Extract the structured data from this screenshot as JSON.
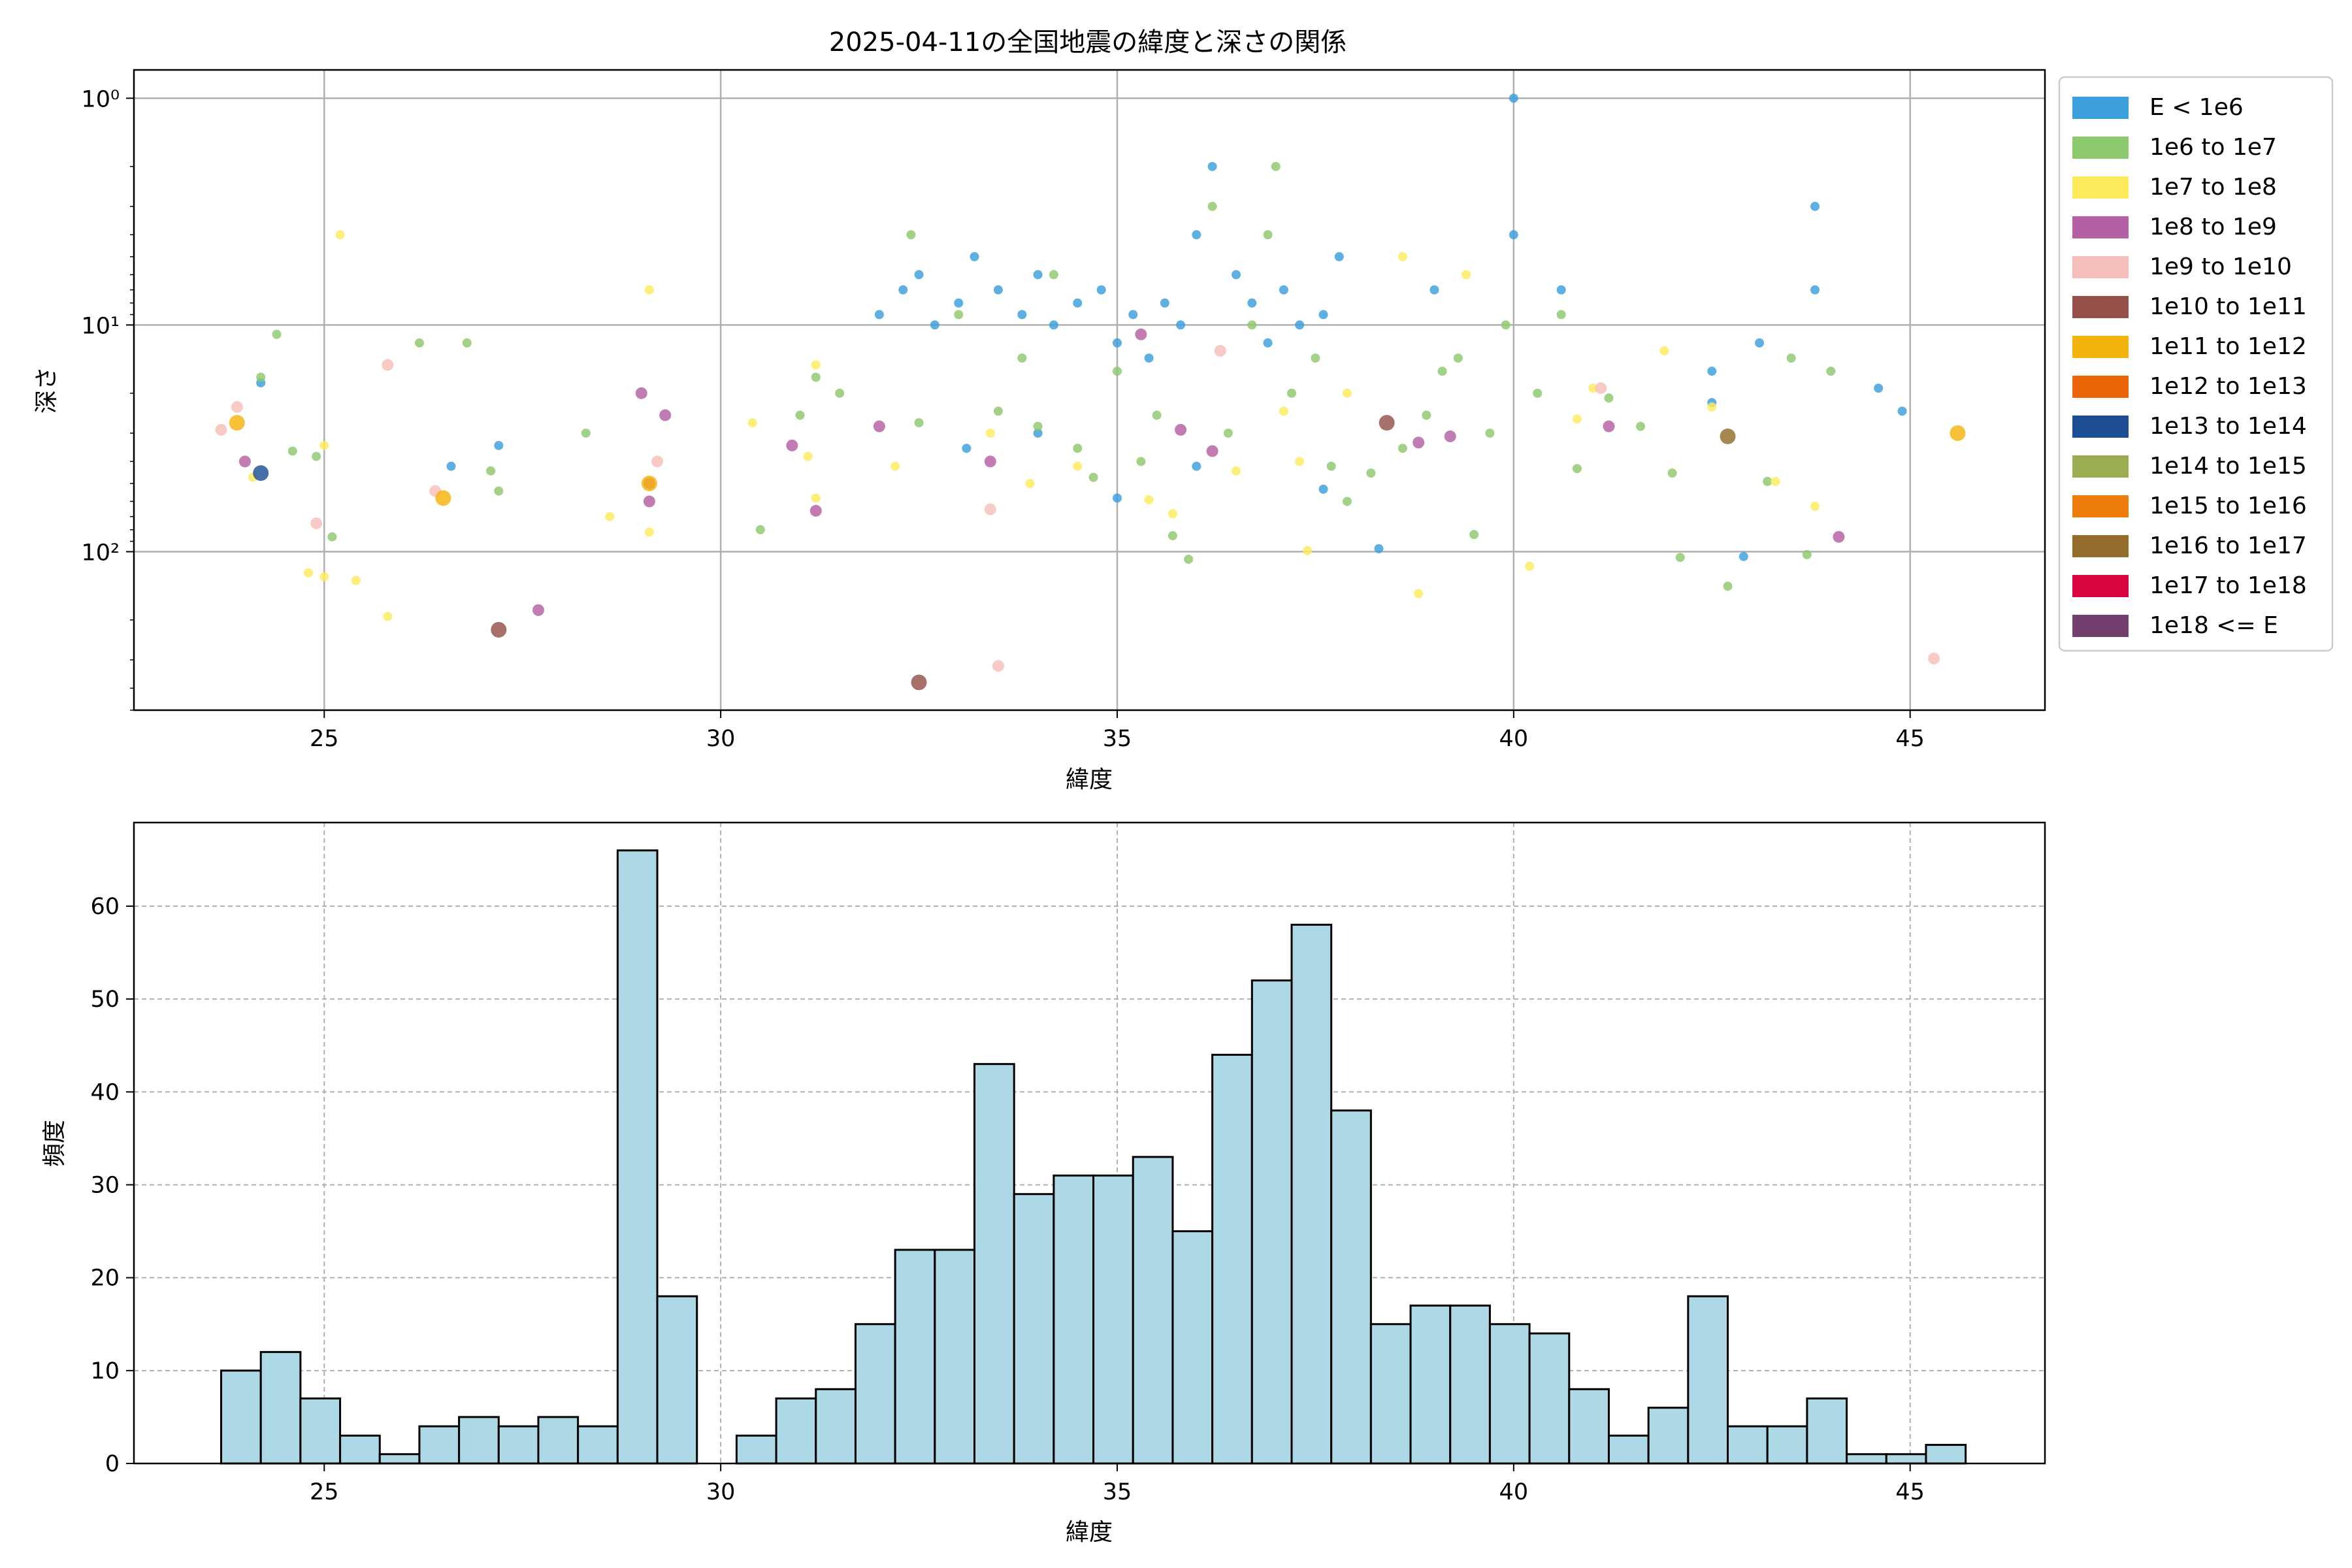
{
  "chart_data": [
    {
      "type": "scatter",
      "title": "2025-04-11の全国地震の緯度と深さの関係",
      "xlabel": "緯度",
      "ylabel": "深さ",
      "xlim": [
        22.6,
        46.7
      ],
      "ylim": [
        500,
        0.75
      ],
      "yscale": "log",
      "yaxis_inverted": true,
      "grid": true,
      "x_ticks": [
        25,
        30,
        35,
        40,
        45
      ],
      "y_ticks": [
        {
          "value": 1,
          "label": "10⁰"
        },
        {
          "value": 10,
          "label": "10¹"
        },
        {
          "value": 100,
          "label": "10²"
        }
      ],
      "legend_position": "outside-right",
      "legend": [
        {
          "label": "E < 1e6",
          "color": "#3a9fdc"
        },
        {
          "label": "1e6 to 1e7",
          "color": "#8cc86c"
        },
        {
          "label": "1e7 to 1e8",
          "color": "#fcec5c"
        },
        {
          "label": "1e8 to 1e9",
          "color": "#b55fa4"
        },
        {
          "label": "1e9 to 1e10",
          "color": "#f6bfbb"
        },
        {
          "label": "1e10 to 1e11",
          "color": "#955049"
        },
        {
          "label": "1e11 to 1e12",
          "color": "#f5b30e"
        },
        {
          "label": "1e12 to 1e13",
          "color": "#ec6509"
        },
        {
          "label": "1e13 to 1e14",
          "color": "#1d4e94"
        },
        {
          "label": "1e14 to 1e15",
          "color": "#9aae51"
        },
        {
          "label": "1e15 to 1e16",
          "color": "#ee7d0b"
        },
        {
          "label": "1e16 to 1e17",
          "color": "#946c2b"
        },
        {
          "label": "1e17 to 1e18",
          "color": "#d8033f"
        },
        {
          "label": "1e18 <= E",
          "color": "#723f6e"
        }
      ],
      "points": [
        {
          "x": 32.0,
          "y": 9,
          "c": 0
        },
        {
          "x": 32.3,
          "y": 7,
          "c": 0
        },
        {
          "x": 32.5,
          "y": 6,
          "c": 0
        },
        {
          "x": 32.7,
          "y": 10,
          "c": 0
        },
        {
          "x": 33.0,
          "y": 8,
          "c": 0
        },
        {
          "x": 33.2,
          "y": 5,
          "c": 0
        },
        {
          "x": 33.5,
          "y": 7,
          "c": 0
        },
        {
          "x": 33.8,
          "y": 9,
          "c": 0
        },
        {
          "x": 34.0,
          "y": 6,
          "c": 0
        },
        {
          "x": 34.2,
          "y": 10,
          "c": 0
        },
        {
          "x": 34.5,
          "y": 8,
          "c": 0
        },
        {
          "x": 34.8,
          "y": 7,
          "c": 0
        },
        {
          "x": 35.0,
          "y": 12,
          "c": 0
        },
        {
          "x": 35.2,
          "y": 9,
          "c": 0
        },
        {
          "x": 35.4,
          "y": 14,
          "c": 0
        },
        {
          "x": 35.6,
          "y": 8,
          "c": 0
        },
        {
          "x": 35.8,
          "y": 10,
          "c": 0
        },
        {
          "x": 36.0,
          "y": 4,
          "c": 0
        },
        {
          "x": 36.2,
          "y": 2,
          "c": 0
        },
        {
          "x": 36.5,
          "y": 6,
          "c": 0
        },
        {
          "x": 36.7,
          "y": 8,
          "c": 0
        },
        {
          "x": 36.9,
          "y": 12,
          "c": 0
        },
        {
          "x": 37.1,
          "y": 7,
          "c": 0
        },
        {
          "x": 37.3,
          "y": 10,
          "c": 0
        },
        {
          "x": 37.6,
          "y": 9,
          "c": 0
        },
        {
          "x": 37.8,
          "y": 5,
          "c": 0
        },
        {
          "x": 38.3,
          "y": 97,
          "c": 0
        },
        {
          "x": 39.0,
          "y": 7,
          "c": 0
        },
        {
          "x": 40.0,
          "y": 1,
          "c": 0
        },
        {
          "x": 40.0,
          "y": 4,
          "c": 0
        },
        {
          "x": 40.6,
          "y": 7,
          "c": 0
        },
        {
          "x": 42.5,
          "y": 16,
          "c": 0
        },
        {
          "x": 43.1,
          "y": 12,
          "c": 0
        },
        {
          "x": 43.8,
          "y": 3,
          "c": 0
        },
        {
          "x": 43.8,
          "y": 7,
          "c": 0
        },
        {
          "x": 44.6,
          "y": 19,
          "c": 0
        },
        {
          "x": 44.9,
          "y": 24,
          "c": 0
        },
        {
          "x": 24.2,
          "y": 18,
          "c": 0
        },
        {
          "x": 26.6,
          "y": 42,
          "c": 0
        },
        {
          "x": 27.2,
          "y": 34,
          "c": 0
        },
        {
          "x": 33.1,
          "y": 35,
          "c": 0
        },
        {
          "x": 34.0,
          "y": 30,
          "c": 0
        },
        {
          "x": 35.0,
          "y": 58,
          "c": 0
        },
        {
          "x": 36.0,
          "y": 42,
          "c": 0
        },
        {
          "x": 37.6,
          "y": 53,
          "c": 0
        },
        {
          "x": 42.5,
          "y": 22,
          "c": 0
        },
        {
          "x": 42.9,
          "y": 105,
          "c": 0
        },
        {
          "x": 24.2,
          "y": 17,
          "c": 1
        },
        {
          "x": 24.4,
          "y": 11,
          "c": 1
        },
        {
          "x": 24.6,
          "y": 36,
          "c": 1
        },
        {
          "x": 24.9,
          "y": 38,
          "c": 1
        },
        {
          "x": 25.1,
          "y": 86,
          "c": 1
        },
        {
          "x": 26.2,
          "y": 12,
          "c": 1
        },
        {
          "x": 26.8,
          "y": 12,
          "c": 1
        },
        {
          "x": 27.1,
          "y": 44,
          "c": 1
        },
        {
          "x": 27.2,
          "y": 54,
          "c": 1
        },
        {
          "x": 28.3,
          "y": 30,
          "c": 1
        },
        {
          "x": 30.5,
          "y": 80,
          "c": 1
        },
        {
          "x": 31.0,
          "y": 25,
          "c": 1
        },
        {
          "x": 31.2,
          "y": 17,
          "c": 1
        },
        {
          "x": 31.5,
          "y": 20,
          "c": 1
        },
        {
          "x": 32.4,
          "y": 4,
          "c": 1
        },
        {
          "x": 32.5,
          "y": 27,
          "c": 1
        },
        {
          "x": 33.0,
          "y": 9,
          "c": 1
        },
        {
          "x": 33.5,
          "y": 24,
          "c": 1
        },
        {
          "x": 33.8,
          "y": 14,
          "c": 1
        },
        {
          "x": 34.0,
          "y": 28,
          "c": 1
        },
        {
          "x": 34.2,
          "y": 6,
          "c": 1
        },
        {
          "x": 34.5,
          "y": 35,
          "c": 1
        },
        {
          "x": 34.7,
          "y": 47,
          "c": 1
        },
        {
          "x": 35.0,
          "y": 16,
          "c": 1
        },
        {
          "x": 35.3,
          "y": 40,
          "c": 1
        },
        {
          "x": 35.5,
          "y": 25,
          "c": 1
        },
        {
          "x": 35.7,
          "y": 85,
          "c": 1
        },
        {
          "x": 35.9,
          "y": 108,
          "c": 1
        },
        {
          "x": 36.2,
          "y": 3,
          "c": 1
        },
        {
          "x": 36.4,
          "y": 30,
          "c": 1
        },
        {
          "x": 36.7,
          "y": 10,
          "c": 1
        },
        {
          "x": 36.9,
          "y": 4,
          "c": 1
        },
        {
          "x": 37.0,
          "y": 2,
          "c": 1
        },
        {
          "x": 37.2,
          "y": 20,
          "c": 1
        },
        {
          "x": 37.5,
          "y": 14,
          "c": 1
        },
        {
          "x": 37.7,
          "y": 42,
          "c": 1
        },
        {
          "x": 37.9,
          "y": 60,
          "c": 1
        },
        {
          "x": 38.2,
          "y": 45,
          "c": 1
        },
        {
          "x": 38.6,
          "y": 35,
          "c": 1
        },
        {
          "x": 38.9,
          "y": 25,
          "c": 1
        },
        {
          "x": 39.1,
          "y": 16,
          "c": 1
        },
        {
          "x": 39.3,
          "y": 14,
          "c": 1
        },
        {
          "x": 39.5,
          "y": 84,
          "c": 1
        },
        {
          "x": 39.7,
          "y": 30,
          "c": 1
        },
        {
          "x": 39.9,
          "y": 10,
          "c": 1
        },
        {
          "x": 40.3,
          "y": 20,
          "c": 1
        },
        {
          "x": 40.6,
          "y": 9,
          "c": 1
        },
        {
          "x": 40.8,
          "y": 43,
          "c": 1
        },
        {
          "x": 41.2,
          "y": 21,
          "c": 1
        },
        {
          "x": 41.6,
          "y": 28,
          "c": 1
        },
        {
          "x": 42.0,
          "y": 45,
          "c": 1
        },
        {
          "x": 42.1,
          "y": 106,
          "c": 1
        },
        {
          "x": 42.7,
          "y": 142,
          "c": 1
        },
        {
          "x": 43.2,
          "y": 49,
          "c": 1
        },
        {
          "x": 43.5,
          "y": 14,
          "c": 1
        },
        {
          "x": 43.7,
          "y": 103,
          "c": 1
        },
        {
          "x": 44.0,
          "y": 16,
          "c": 1
        },
        {
          "x": 24.1,
          "y": 47,
          "c": 2
        },
        {
          "x": 24.8,
          "y": 124,
          "c": 2
        },
        {
          "x": 25.0,
          "y": 34,
          "c": 2
        },
        {
          "x": 25.0,
          "y": 129,
          "c": 2
        },
        {
          "x": 25.2,
          "y": 4,
          "c": 2
        },
        {
          "x": 25.4,
          "y": 134,
          "c": 2
        },
        {
          "x": 25.8,
          "y": 193,
          "c": 2
        },
        {
          "x": 28.6,
          "y": 70,
          "c": 2
        },
        {
          "x": 29.1,
          "y": 7,
          "c": 2
        },
        {
          "x": 29.1,
          "y": 82,
          "c": 2
        },
        {
          "x": 30.4,
          "y": 27,
          "c": 2
        },
        {
          "x": 31.1,
          "y": 38,
          "c": 2
        },
        {
          "x": 31.2,
          "y": 58,
          "c": 2
        },
        {
          "x": 31.2,
          "y": 15,
          "c": 2
        },
        {
          "x": 32.2,
          "y": 42,
          "c": 2
        },
        {
          "x": 33.4,
          "y": 30,
          "c": 2
        },
        {
          "x": 33.9,
          "y": 50,
          "c": 2
        },
        {
          "x": 34.5,
          "y": 42,
          "c": 2
        },
        {
          "x": 35.4,
          "y": 59,
          "c": 2
        },
        {
          "x": 35.7,
          "y": 68,
          "c": 2
        },
        {
          "x": 36.5,
          "y": 44,
          "c": 2
        },
        {
          "x": 37.1,
          "y": 24,
          "c": 2
        },
        {
          "x": 37.3,
          "y": 40,
          "c": 2
        },
        {
          "x": 37.4,
          "y": 99,
          "c": 2
        },
        {
          "x": 37.9,
          "y": 20,
          "c": 2
        },
        {
          "x": 38.6,
          "y": 5,
          "c": 2
        },
        {
          "x": 38.8,
          "y": 153,
          "c": 2
        },
        {
          "x": 39.4,
          "y": 6,
          "c": 2
        },
        {
          "x": 40.2,
          "y": 116,
          "c": 2
        },
        {
          "x": 40.8,
          "y": 26,
          "c": 2
        },
        {
          "x": 41.0,
          "y": 19,
          "c": 2
        },
        {
          "x": 41.9,
          "y": 13,
          "c": 2
        },
        {
          "x": 42.5,
          "y": 23,
          "c": 2
        },
        {
          "x": 43.3,
          "y": 49,
          "c": 2
        },
        {
          "x": 43.8,
          "y": 63,
          "c": 2
        },
        {
          "x": 24.0,
          "y": 40,
          "c": 3
        },
        {
          "x": 27.7,
          "y": 181,
          "c": 3
        },
        {
          "x": 29.0,
          "y": 20,
          "c": 3
        },
        {
          "x": 29.1,
          "y": 50,
          "c": 3
        },
        {
          "x": 29.1,
          "y": 60,
          "c": 3
        },
        {
          "x": 29.3,
          "y": 25,
          "c": 3
        },
        {
          "x": 30.9,
          "y": 34,
          "c": 3
        },
        {
          "x": 31.2,
          "y": 66,
          "c": 3
        },
        {
          "x": 32.0,
          "y": 28,
          "c": 3
        },
        {
          "x": 33.4,
          "y": 40,
          "c": 3
        },
        {
          "x": 35.3,
          "y": 11,
          "c": 3
        },
        {
          "x": 35.8,
          "y": 29,
          "c": 3
        },
        {
          "x": 36.2,
          "y": 36,
          "c": 3
        },
        {
          "x": 38.8,
          "y": 33,
          "c": 3
        },
        {
          "x": 39.2,
          "y": 31,
          "c": 3
        },
        {
          "x": 41.2,
          "y": 28,
          "c": 3
        },
        {
          "x": 44.1,
          "y": 86,
          "c": 3
        },
        {
          "x": 23.7,
          "y": 29,
          "c": 4
        },
        {
          "x": 23.9,
          "y": 23,
          "c": 4
        },
        {
          "x": 24.9,
          "y": 75,
          "c": 4
        },
        {
          "x": 25.8,
          "y": 15,
          "c": 4
        },
        {
          "x": 26.4,
          "y": 54,
          "c": 4
        },
        {
          "x": 29.2,
          "y": 40,
          "c": 4
        },
        {
          "x": 33.4,
          "y": 65,
          "c": 4
        },
        {
          "x": 33.5,
          "y": 319,
          "c": 4
        },
        {
          "x": 36.3,
          "y": 13,
          "c": 4
        },
        {
          "x": 41.1,
          "y": 19,
          "c": 4
        },
        {
          "x": 45.3,
          "y": 296,
          "c": 4
        },
        {
          "x": 27.2,
          "y": 221,
          "c": 5
        },
        {
          "x": 32.5,
          "y": 377,
          "c": 5
        },
        {
          "x": 38.4,
          "y": 27,
          "c": 5
        },
        {
          "x": 23.9,
          "y": 27,
          "c": 6
        },
        {
          "x": 26.5,
          "y": 58,
          "c": 6
        },
        {
          "x": 29.1,
          "y": 50,
          "c": 6
        },
        {
          "x": 45.6,
          "y": 30,
          "c": 6
        },
        {
          "x": 24.2,
          "y": 45,
          "c": 8
        },
        {
          "x": 42.7,
          "y": 31,
          "c": 11
        }
      ]
    },
    {
      "type": "bar",
      "title": "",
      "xlabel": "緯度",
      "ylabel": "頻度",
      "xlim": [
        22.6,
        46.7
      ],
      "ylim": [
        0,
        69
      ],
      "grid": true,
      "x_ticks": [
        25,
        30,
        35,
        40,
        45
      ],
      "y_ticks": [
        0,
        10,
        20,
        30,
        40,
        50,
        60
      ],
      "bar_color": "#add8e6",
      "bin_width": 0.5,
      "bin_edges_start": 23.7,
      "values": [
        10,
        12,
        7,
        3,
        1,
        4,
        5,
        4,
        5,
        4,
        66,
        18,
        0,
        3,
        7,
        8,
        15,
        23,
        23,
        43,
        29,
        31,
        31,
        33,
        25,
        44,
        52,
        58,
        38,
        15,
        17,
        17,
        15,
        14,
        8,
        3,
        6,
        18,
        4,
        4,
        7,
        1,
        1,
        2
      ]
    }
  ]
}
